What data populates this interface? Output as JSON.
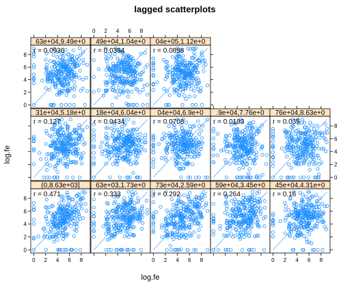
{
  "chart_data": {
    "type": "scatter",
    "title": "lagged scatterplots",
    "xlabel": "log.fe",
    "ylabel": "log.fe",
    "xlim": [
      -0.5,
      9.5
    ],
    "ylim": [
      -0.5,
      9.5
    ],
    "axis_ticks": [
      0,
      2,
      4,
      6,
      8
    ],
    "colors": {
      "points": "#1f8fff",
      "strip_bg": "#ffe4c4",
      "panel_border": "#000000",
      "text": "#000000"
    },
    "panels": [
      {
        "strip": "63e+04,9.49e+0",
        "r_label": "r = 0.0936",
        "r": 0.0936
      },
      {
        "strip": "49e+04,1.04e+0",
        "r_label": "r = 0.0384",
        "r": 0.0384
      },
      {
        "strip": "04e+05,1.12e+0",
        "r_label": "r = 0.0898",
        "r": 0.0898
      },
      {
        "strip": "31e+04,5.18e+0",
        "r_label": "r = 0.127",
        "r": 0.127
      },
      {
        "strip": "18e+04,6.04e+0",
        "r_label": "r = 0.0434",
        "r": 0.0434
      },
      {
        "strip": "04e+04,6.9e+0",
        "r_label": "r = 0.0708",
        "r": 0.0708
      },
      {
        "strip": ".9e+04,7.76e+0",
        "r_label": "r = 0.0183",
        "r": 0.0183
      },
      {
        "strip": "76e+04,8.63e+0",
        "r_label": "r = 0.035",
        "r": 0.035
      },
      {
        "strip": "(0,8.63e+03]",
        "r_label": "r = 0.471",
        "r": 0.471
      },
      {
        "strip": "63e+03,1.73e+0",
        "r_label": "r = 0.333",
        "r": 0.333
      },
      {
        "strip": "73e+04,2.59e+0",
        "r_label": "r = 0.292",
        "r": 0.292
      },
      {
        "strip": "59e+04,3.45e+0",
        "r_label": "r = 0.264",
        "r": 0.264
      },
      {
        "strip": "45e+04,4.31e+0",
        "r_label": "r = 0.16",
        "r": 0.16
      }
    ]
  }
}
